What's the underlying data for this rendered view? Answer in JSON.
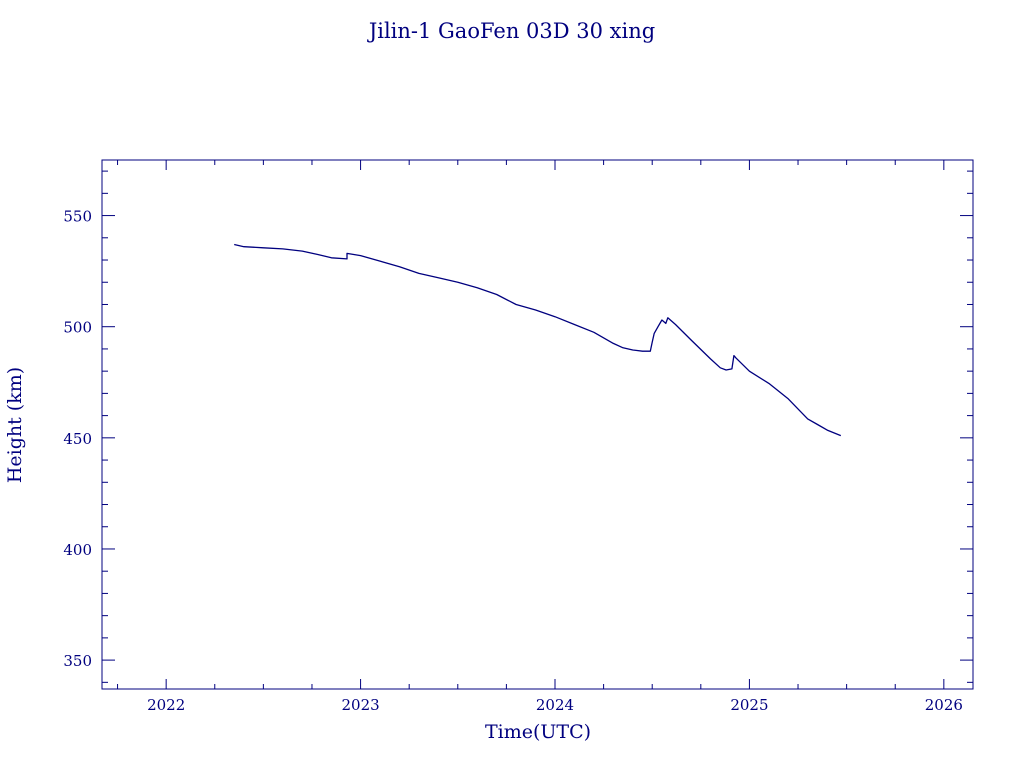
{
  "chart_data": {
    "type": "line",
    "title": "Jilin-1 GaoFen 03D 30 xing",
    "xlabel": "Time(UTC)",
    "ylabel": "Height (km)",
    "xlim": [
      2021.67,
      2026.15
    ],
    "ylim": [
      337,
      575
    ],
    "x_major_ticks": [
      2022,
      2023,
      2024,
      2025,
      2026
    ],
    "x_tick_labels": [
      "2022",
      "2023",
      "2024",
      "2025",
      "2026"
    ],
    "y_major_ticks": [
      350,
      400,
      450,
      500,
      550
    ],
    "y_tick_labels": [
      "350",
      "400",
      "450",
      "500",
      "550"
    ],
    "grid": false,
    "color": "#00007f",
    "series": [
      {
        "x": [
          2022.35,
          2022.4,
          2022.5,
          2022.6,
          2022.7,
          2022.78,
          2022.85,
          2022.93,
          2022.93,
          2023.0,
          2023.1,
          2023.2,
          2023.3,
          2023.4,
          2023.5,
          2023.6,
          2023.7,
          2023.8,
          2023.9,
          2024.0,
          2024.1,
          2024.2,
          2024.3,
          2024.35,
          2024.4,
          2024.45,
          2024.49,
          2024.5,
          2024.51,
          2024.53,
          2024.55,
          2024.57,
          2024.58,
          2024.62,
          2024.7,
          2024.8,
          2024.85,
          2024.88,
          2024.91,
          2024.92,
          2024.93,
          2025.0,
          2025.1,
          2025.2,
          2025.25,
          2025.3,
          2025.35,
          2025.4,
          2025.47
        ],
        "y": [
          537,
          536,
          535.5,
          535,
          534,
          532.5,
          531,
          530.5,
          533,
          532,
          529.5,
          527,
          524,
          522,
          520,
          517.5,
          514.5,
          510,
          507.5,
          504.5,
          501,
          497.5,
          492.5,
          490.5,
          489.5,
          489,
          489,
          493,
          497,
          500,
          503,
          501.5,
          504,
          501,
          494,
          485.5,
          481.5,
          480.5,
          481,
          487,
          486,
          480,
          474.5,
          467.5,
          463,
          458.5,
          456,
          453.5,
          451
        ]
      }
    ]
  }
}
